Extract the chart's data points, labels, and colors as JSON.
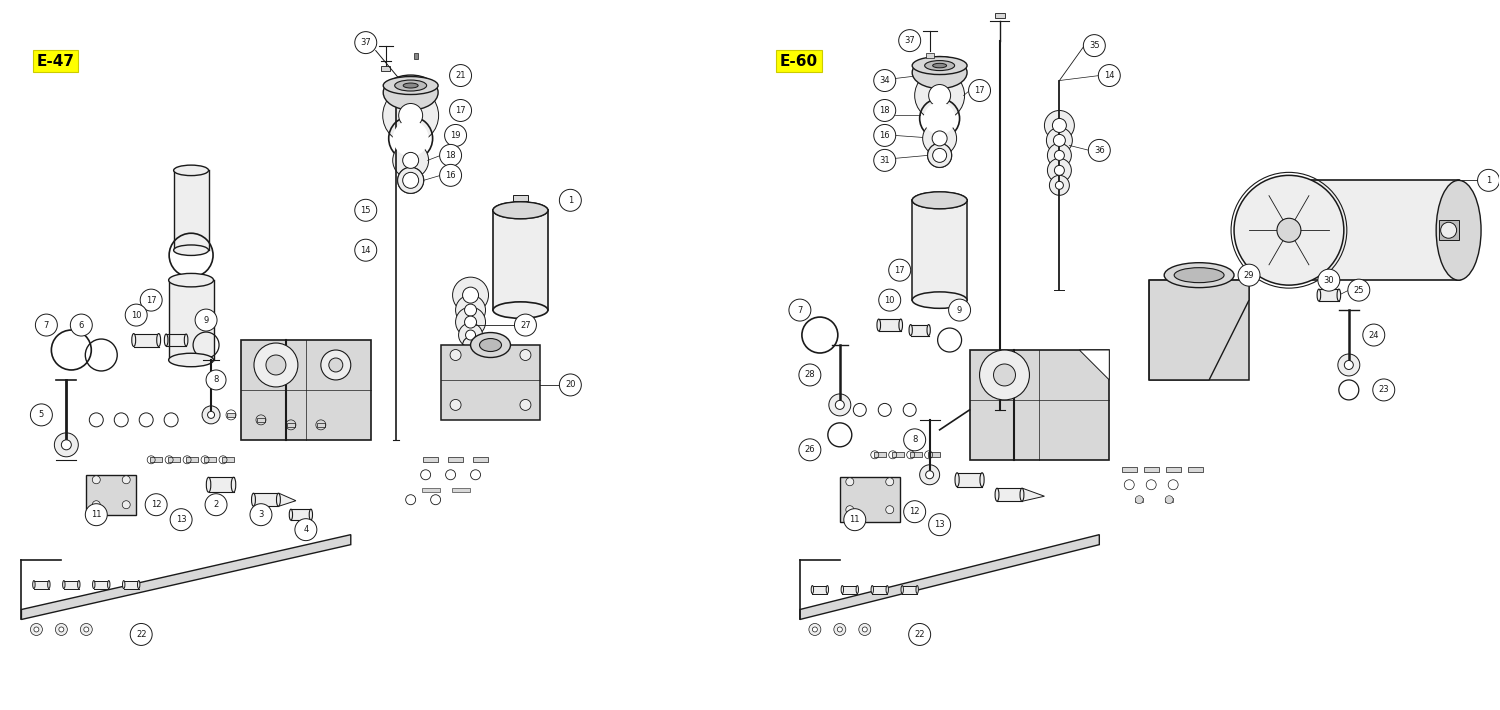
{
  "bg": "#ffffff",
  "pc": "#1a1a1a",
  "fc_light": "#eeeeee",
  "fc_mid": "#d8d8d8",
  "fc_dark": "#bbbbbb",
  "lw_main": 1.0,
  "lw_thin": 0.6,
  "fig_w": 15.0,
  "fig_h": 7.1
}
